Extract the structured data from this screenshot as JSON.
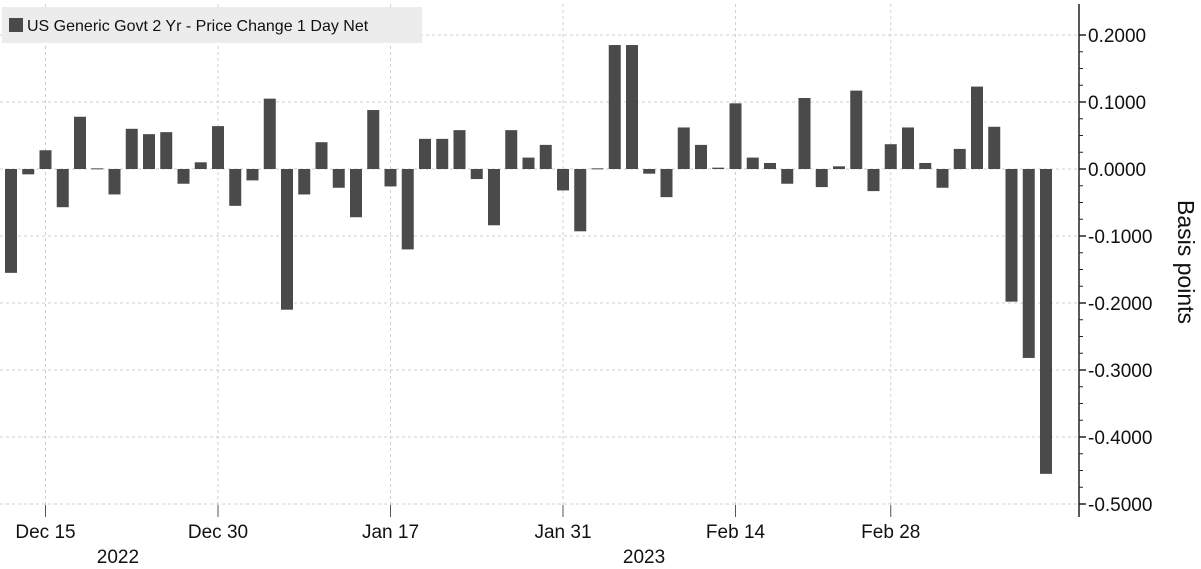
{
  "chart_data": {
    "type": "bar",
    "ylabel": "Basis points",
    "ylim": [
      -0.5,
      0.25
    ],
    "y_ticks": [
      0.2,
      0.1,
      0.0,
      -0.1,
      -0.2,
      -0.3,
      -0.4,
      -0.5
    ],
    "y_tick_labels": [
      "0.2000",
      "0.1000",
      "0.0000",
      "-0.1000",
      "-0.2000",
      "-0.3000",
      "-0.4000",
      "-0.5000"
    ],
    "x_ticks": [
      {
        "label": "Dec 15",
        "index": 2
      },
      {
        "label": "Dec 30",
        "index": 12
      },
      {
        "label": "Jan 17",
        "index": 22
      },
      {
        "label": "Jan 31",
        "index": 32
      },
      {
        "label": "Feb 14",
        "index": 42
      },
      {
        "label": "Feb 28",
        "index": 51
      }
    ],
    "x_year_labels": [
      {
        "label": "2022",
        "index": 6.2
      },
      {
        "label": "2023",
        "index": 36.7
      }
    ],
    "grid": true,
    "legend_position": "top-left",
    "series": [
      {
        "name": "US Generic Govt 2 Yr - Price Change 1 Day Net",
        "color": "#4a4a4a",
        "values": [
          -0.155,
          -0.008,
          0.028,
          -0.057,
          0.078,
          0.001,
          -0.038,
          0.06,
          0.052,
          0.055,
          -0.022,
          0.01,
          0.064,
          -0.055,
          -0.017,
          0.105,
          -0.21,
          -0.038,
          0.04,
          -0.028,
          -0.072,
          0.088,
          -0.026,
          -0.12,
          0.045,
          0.045,
          0.058,
          -0.015,
          -0.084,
          0.058,
          0.017,
          0.036,
          -0.032,
          -0.093,
          0.001,
          0.185,
          0.185,
          -0.007,
          -0.042,
          0.062,
          0.036,
          0.002,
          0.098,
          0.017,
          0.009,
          -0.022,
          0.106,
          -0.027,
          0.004,
          0.117,
          -0.033,
          0.037,
          0.062,
          0.009,
          -0.028,
          0.03,
          0.123,
          0.063,
          -0.198,
          -0.282,
          -0.455
        ]
      }
    ]
  }
}
